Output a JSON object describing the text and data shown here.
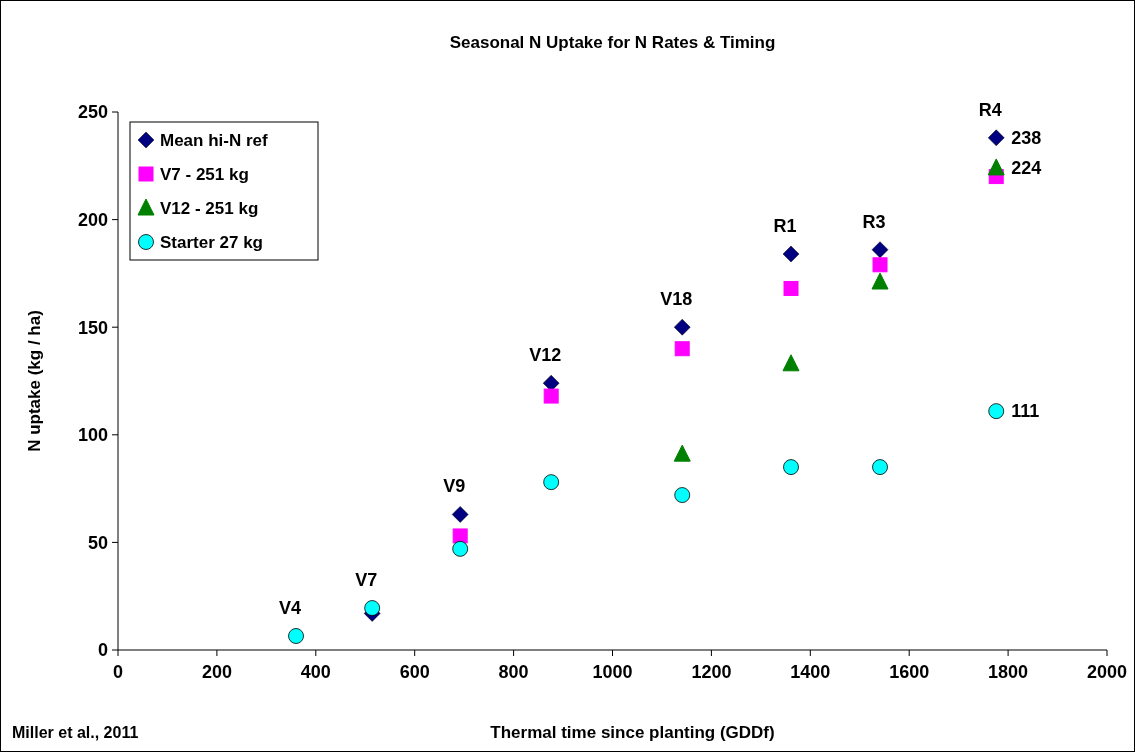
{
  "chart_data": {
    "type": "scatter",
    "title": "Seasonal N Uptake for N Rates & Timing",
    "xlabel": "Thermal time since planting (GDDf)",
    "ylabel": "N uptake (kg / ha)",
    "xlim": [
      0,
      2000
    ],
    "xticks": [
      0,
      200,
      400,
      600,
      800,
      1000,
      1200,
      1400,
      1600,
      1800,
      2000
    ],
    "ylim": [
      0,
      250
    ],
    "yticks": [
      0,
      50,
      100,
      150,
      200,
      250
    ],
    "grid": false,
    "legend": "top left",
    "series": [
      {
        "name": "Mean hi-N ref",
        "color": "#000080",
        "marker": "diamond",
        "x": [
          514,
          692,
          876,
          1141,
          1361,
          1541,
          1776
        ],
        "values": [
          17,
          63,
          124,
          150,
          184,
          186,
          238
        ],
        "value_labels": [
          null,
          null,
          null,
          null,
          null,
          null,
          "238"
        ]
      },
      {
        "name": "V7 - 251 kg",
        "color": "#ff00ff",
        "marker": "square",
        "x": [
          692,
          876,
          1141,
          1361,
          1541,
          1776
        ],
        "values": [
          53,
          118,
          140,
          168,
          179,
          220
        ]
      },
      {
        "name": "V12 - 251 kg",
        "color": "#008000",
        "marker": "triangle",
        "x": [
          1141,
          1361,
          1541,
          1776
        ],
        "values": [
          91,
          133,
          171,
          224
        ],
        "value_labels": [
          null,
          null,
          null,
          "224"
        ]
      },
      {
        "name": "Starter 27 kg",
        "color": "#00ffff",
        "marker": "circle",
        "x": [
          360,
          514,
          692,
          876,
          1141,
          1361,
          1541,
          1776
        ],
        "values": [
          6.5,
          19.5,
          47,
          78,
          72,
          85,
          85,
          111
        ],
        "value_labels": [
          null,
          null,
          null,
          null,
          null,
          null,
          null,
          "111"
        ]
      }
    ],
    "annotations": [
      {
        "text": "V4",
        "x": 360,
        "y": 6.5
      },
      {
        "text": "V7",
        "x": 514,
        "y": 19.5
      },
      {
        "text": "V9",
        "x": 692,
        "y": 63
      },
      {
        "text": "V12",
        "x": 876,
        "y": 124
      },
      {
        "text": "V18",
        "x": 1141,
        "y": 150
      },
      {
        "text": "R1",
        "x": 1361,
        "y": 184
      },
      {
        "text": "R3",
        "x": 1541,
        "y": 186
      },
      {
        "text": "R4",
        "x": 1776,
        "y": 238
      },
      "Miller et al., 2011"
    ]
  }
}
